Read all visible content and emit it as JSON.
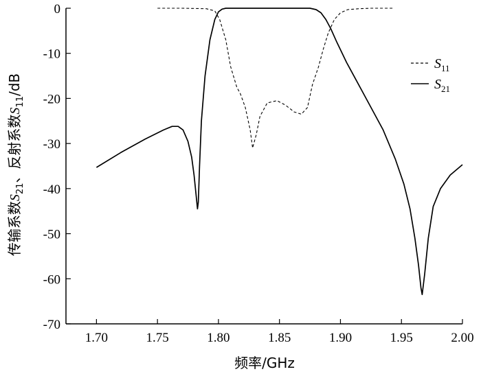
{
  "chart_data": {
    "type": "line",
    "xlabel": "频率/GHz",
    "ylabel": {
      "prefix": "传输系数",
      "s21": {
        "letter": "S",
        "sub": "21"
      },
      "middle": "、反射系数",
      "s11": {
        "letter": "S",
        "sub": "11"
      },
      "suffix": "/dB"
    },
    "xlim": [
      1.675,
      2.0
    ],
    "ylim": [
      -70,
      0
    ],
    "x_ticks": [
      1.7,
      1.75,
      1.8,
      1.85,
      1.9,
      1.95,
      2.0
    ],
    "x_tick_labels": [
      "1.70",
      "1.75",
      "1.80",
      "1.85",
      "1.90",
      "1.95",
      "2.00"
    ],
    "y_ticks": [
      0,
      -10,
      -20,
      -30,
      -40,
      -50,
      -60,
      -70
    ],
    "y_tick_labels": [
      "0",
      "-10",
      "-20",
      "-30",
      "-40",
      "-50",
      "-60",
      "-70"
    ],
    "grid": false,
    "legend_position": "right-middle",
    "series": [
      {
        "name": "S11",
        "name_letter": "S",
        "name_sub": "11",
        "style": "dashed",
        "color": "#000000",
        "x": [
          1.75,
          1.77,
          1.79,
          1.797,
          1.801,
          1.806,
          1.81,
          1.815,
          1.818,
          1.822,
          1.826,
          1.828,
          1.831,
          1.834,
          1.84,
          1.848,
          1.855,
          1.862,
          1.868,
          1.873,
          1.877,
          1.882,
          1.886,
          1.89,
          1.895,
          1.9,
          1.906,
          1.915,
          1.925,
          1.935,
          1.943
        ],
        "y": [
          0.0,
          0.0,
          -0.1,
          -0.6,
          -2.5,
          -7.0,
          -13.0,
          -17.5,
          -19.0,
          -22.0,
          -27.0,
          -31.0,
          -28.0,
          -24.0,
          -21.0,
          -20.5,
          -21.5,
          -23.0,
          -23.5,
          -22.0,
          -17.0,
          -13.0,
          -9.0,
          -5.5,
          -2.5,
          -1.0,
          -0.3,
          -0.1,
          0.0,
          0.0,
          0.0
        ]
      },
      {
        "name": "S21",
        "name_letter": "S",
        "name_sub": "21",
        "style": "solid",
        "color": "#000000",
        "x": [
          1.7,
          1.72,
          1.74,
          1.755,
          1.762,
          1.767,
          1.771,
          1.775,
          1.778,
          1.78,
          1.7815,
          1.7828,
          1.7835,
          1.7845,
          1.786,
          1.789,
          1.793,
          1.797,
          1.8,
          1.803,
          1.806,
          1.81,
          1.82,
          1.86,
          1.875,
          1.88,
          1.884,
          1.888,
          1.892,
          1.897,
          1.905,
          1.92,
          1.935,
          1.945,
          1.952,
          1.957,
          1.961,
          1.964,
          1.966,
          1.967,
          1.969,
          1.972,
          1.976,
          1.982,
          1.99,
          2.0
        ],
        "y": [
          -35.3,
          -32.0,
          -29.0,
          -27.0,
          -26.2,
          -26.2,
          -27.0,
          -29.5,
          -33.0,
          -37.0,
          -41.0,
          -44.5,
          -43.0,
          -35.0,
          -25.0,
          -15.0,
          -7.0,
          -2.5,
          -0.8,
          -0.2,
          0.0,
          0.0,
          0.0,
          0.0,
          0.0,
          -0.3,
          -1.0,
          -2.5,
          -4.5,
          -7.5,
          -12.0,
          -19.5,
          -27.0,
          -33.5,
          -39.0,
          -44.5,
          -51.0,
          -57.0,
          -62.0,
          -63.5,
          -59.0,
          -51.0,
          -44.0,
          -40.0,
          -37.0,
          -34.7
        ]
      }
    ]
  }
}
